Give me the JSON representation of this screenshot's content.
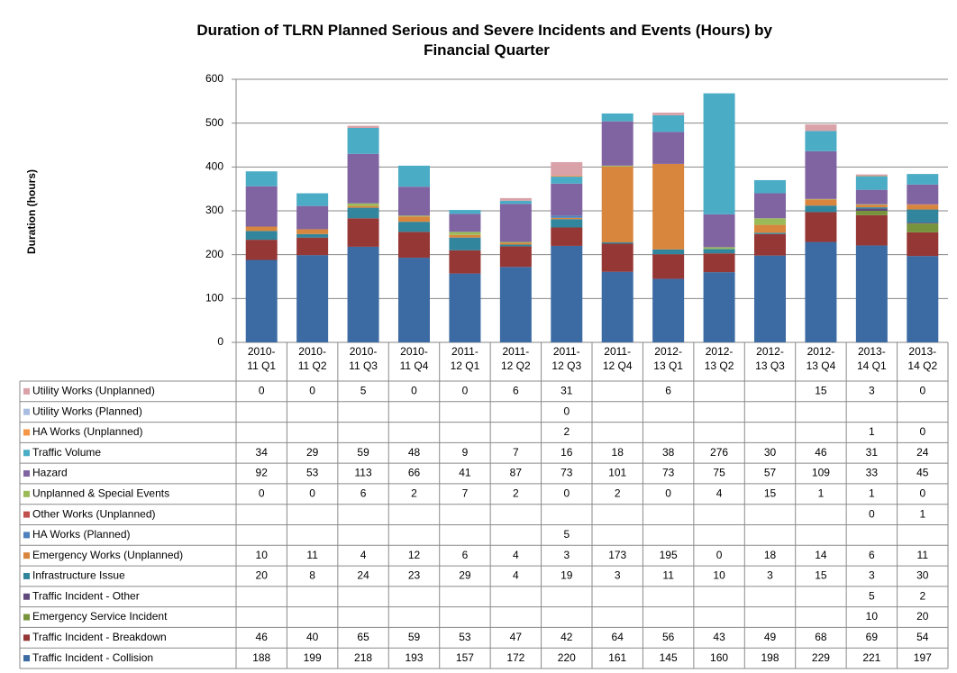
{
  "chart_data": {
    "type": "stacked-bar",
    "title": "Duration of TLRN Planned Serious and Severe Incidents and Events (Hours) by Financial Quarter",
    "y_label": "Duration (hours)",
    "categories": [
      "2010-11 Q1",
      "2010-11 Q2",
      "2010-11 Q3",
      "2010-11 Q4",
      "2011-12 Q1",
      "2011-12 Q2",
      "2011-12 Q3",
      "2011-12 Q4",
      "2012-13 Q1",
      "2012-13 Q2",
      "2012-13 Q3",
      "2012-13 Q4",
      "2013-14 Q1",
      "2013-14 Q2"
    ],
    "ylim": [
      0,
      600
    ],
    "yticks": [
      0,
      100,
      200,
      300,
      400,
      500,
      600
    ],
    "grid": true,
    "series": [
      {
        "name": "Utility Works (Unplanned)",
        "color": "#d9a2a8",
        "values": [
          0,
          0,
          5,
          0,
          0,
          6,
          31,
          null,
          6,
          null,
          null,
          15,
          3,
          0
        ]
      },
      {
        "name": "Utility Works (Planned)",
        "color": "#a9bde0",
        "values": [
          null,
          null,
          null,
          null,
          null,
          null,
          0,
          null,
          null,
          null,
          null,
          null,
          null,
          null
        ]
      },
      {
        "name": "HA Works (Unplanned)",
        "color": "#f79646",
        "values": [
          null,
          null,
          null,
          null,
          null,
          null,
          2,
          null,
          null,
          null,
          null,
          null,
          1,
          0
        ]
      },
      {
        "name": "Traffic Volume",
        "color": "#4bacc6",
        "values": [
          34,
          29,
          59,
          48,
          9,
          7,
          16,
          18,
          38,
          276,
          30,
          46,
          31,
          24
        ]
      },
      {
        "name": "Hazard",
        "color": "#8064a2",
        "values": [
          92,
          53,
          113,
          66,
          41,
          87,
          73,
          101,
          73,
          75,
          57,
          109,
          33,
          45
        ]
      },
      {
        "name": "Unplanned & Special Events",
        "color": "#9bbb59",
        "values": [
          0,
          0,
          6,
          2,
          7,
          2,
          0,
          2,
          0,
          4,
          15,
          1,
          1,
          0
        ]
      },
      {
        "name": "Other Works (Unplanned)",
        "color": "#c0504d",
        "values": [
          null,
          null,
          null,
          null,
          null,
          null,
          null,
          null,
          null,
          null,
          null,
          null,
          0,
          1
        ]
      },
      {
        "name": "HA Works (Planned)",
        "color": "#4f81bd",
        "values": [
          null,
          null,
          null,
          null,
          null,
          null,
          5,
          null,
          null,
          null,
          null,
          null,
          null,
          null
        ]
      },
      {
        "name": "Emergency Works (Unplanned)",
        "color": "#d8863d",
        "values": [
          10,
          11,
          4,
          12,
          6,
          4,
          3,
          173,
          195,
          0,
          18,
          14,
          6,
          11
        ]
      },
      {
        "name": "Infrastructure Issue",
        "color": "#31859c",
        "values": [
          20,
          8,
          24,
          23,
          29,
          4,
          19,
          3,
          11,
          10,
          3,
          15,
          3,
          30
        ]
      },
      {
        "name": "Traffic Incident - Other",
        "color": "#604a7b",
        "values": [
          null,
          null,
          null,
          null,
          null,
          null,
          null,
          null,
          null,
          null,
          null,
          null,
          5,
          2
        ]
      },
      {
        "name": "Emergency Service Incident",
        "color": "#77933c",
        "values": [
          null,
          null,
          null,
          null,
          null,
          null,
          null,
          null,
          null,
          null,
          null,
          null,
          10,
          20
        ]
      },
      {
        "name": "Traffic Incident - Breakdown",
        "color": "#953735",
        "values": [
          46,
          40,
          65,
          59,
          53,
          47,
          42,
          64,
          56,
          43,
          49,
          68,
          69,
          54
        ]
      },
      {
        "name": "Traffic Incident - Collision",
        "color": "#3c6aa2",
        "values": [
          188,
          199,
          218,
          193,
          157,
          172,
          220,
          161,
          145,
          160,
          198,
          229,
          221,
          197
        ]
      }
    ]
  }
}
